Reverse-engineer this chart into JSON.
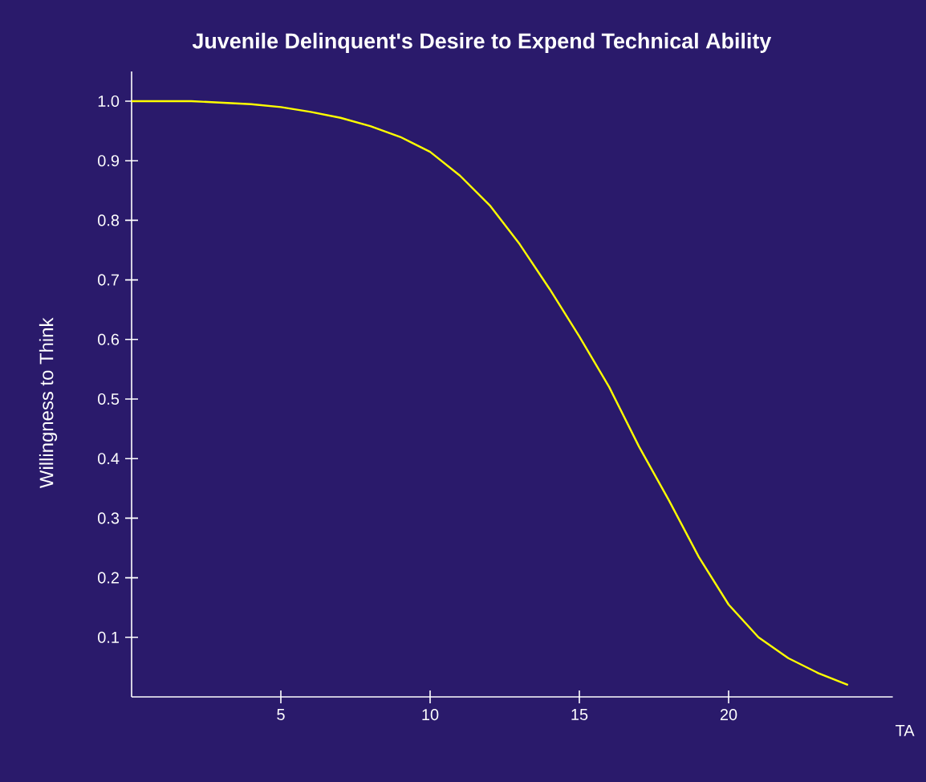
{
  "chart_data": {
    "type": "line",
    "title": "Juvenile Delinquent's Desire to Expend Technical Ability",
    "xlabel": "TA",
    "ylabel": "Willingness to Think",
    "x": [
      0,
      2,
      4,
      5,
      6,
      7,
      8,
      9,
      10,
      11,
      12,
      13,
      14,
      15,
      16,
      17,
      18,
      19,
      20,
      21,
      22,
      23,
      24
    ],
    "series": [
      {
        "color": "#ffff00",
        "values": [
          1.0,
          1.0,
          0.995,
          0.99,
          0.982,
          0.972,
          0.958,
          0.94,
          0.915,
          0.875,
          0.825,
          0.76,
          0.685,
          0.605,
          0.52,
          0.42,
          0.33,
          0.235,
          0.155,
          0.1,
          0.065,
          0.04,
          0.02
        ]
      }
    ],
    "xlim": [
      0,
      25.5
    ],
    "ylim": [
      0,
      1.05
    ],
    "xticks": [
      5,
      10,
      15,
      20
    ],
    "yticks": [
      0.1,
      0.2,
      0.3,
      0.4,
      0.5,
      0.6,
      0.7,
      0.8,
      0.9,
      {
        "value": 1,
        "label": "1.0"
      }
    ],
    "grid": false,
    "marker": "none",
    "line_style": "solid"
  }
}
